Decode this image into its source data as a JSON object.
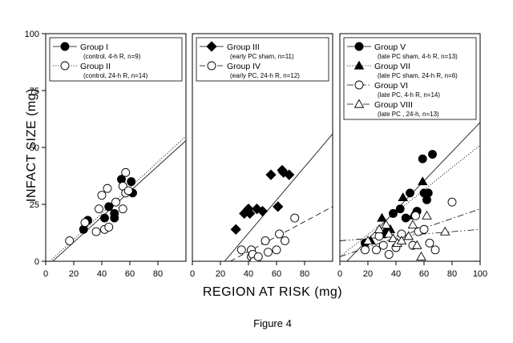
{
  "figure": {
    "caption": "Figure 4",
    "ylabel": "INFACT SIZE (mg)",
    "xlabel": "REGION AT RISK (mg)"
  },
  "chart_data": [
    {
      "type": "scatter",
      "xlim": [
        0,
        100
      ],
      "ylim": [
        0,
        100
      ],
      "yticks": [
        "0",
        "25",
        "50",
        "75",
        "100"
      ],
      "xticks": [
        "0",
        "20",
        "40",
        "60",
        "80"
      ],
      "grid": false,
      "legend_position": "top",
      "series": [
        {
          "name": "Group I",
          "desc": "(control, 4-h R, n=9)",
          "marker": "circle-filled",
          "line": "solid",
          "fit": [
            [
              5,
              0
            ],
            [
              100,
              53
            ]
          ],
          "points": [
            [
              27,
              14
            ],
            [
              30,
              18
            ],
            [
              42,
              19
            ],
            [
              45,
              24
            ],
            [
              49,
              19
            ],
            [
              49,
              21
            ],
            [
              54,
              36
            ],
            [
              61,
              35
            ],
            [
              62,
              30
            ]
          ]
        },
        {
          "name": "Group II",
          "desc": "(control, 24-h R, n=14)",
          "marker": "circle-open",
          "line": "dotted",
          "fit": [
            [
              3,
              0
            ],
            [
              100,
              55
            ]
          ],
          "points": [
            [
              17,
              9
            ],
            [
              28,
              17
            ],
            [
              36,
              13
            ],
            [
              38,
              23
            ],
            [
              40,
              29
            ],
            [
              42,
              14
            ],
            [
              45,
              15
            ],
            [
              44,
              32
            ],
            [
              50,
              26
            ],
            [
              55,
              23
            ],
            [
              55,
              33
            ],
            [
              57,
              39
            ],
            [
              57,
              30
            ],
            [
              59,
              31
            ]
          ]
        }
      ]
    },
    {
      "type": "scatter",
      "xlim": [
        0,
        100
      ],
      "ylim": [
        0,
        100
      ],
      "yticks": [],
      "xticks": [
        "0",
        "20",
        "40",
        "60",
        "80"
      ],
      "grid": false,
      "legend_position": "top",
      "series": [
        {
          "name": "Group III",
          "desc": "(early PC sham, n=11)",
          "marker": "diamond-filled",
          "line": "solid",
          "fit": [
            [
              23,
              0
            ],
            [
              100,
              56
            ]
          ],
          "points": [
            [
              31,
              14
            ],
            [
              37,
              21
            ],
            [
              40,
              23
            ],
            [
              41,
              21
            ],
            [
              46,
              23
            ],
            [
              50,
              22
            ],
            [
              56,
              38
            ],
            [
              61,
              24
            ],
            [
              64,
              40
            ],
            [
              65,
              39
            ],
            [
              69,
              38
            ]
          ]
        },
        {
          "name": "Group IV",
          "desc": "(early PC, 24-h R, n=12)",
          "marker": "circle-open",
          "line": "dashed",
          "fit": [
            [
              27,
              0
            ],
            [
              100,
              24
            ]
          ],
          "points": [
            [
              35,
              5
            ],
            [
              42,
              5
            ],
            [
              42,
              2
            ],
            [
              43,
              3
            ],
            [
              44,
              0
            ],
            [
              47,
              2
            ],
            [
              52,
              9
            ],
            [
              54,
              4
            ],
            [
              60,
              5
            ],
            [
              62,
              12
            ],
            [
              66,
              9
            ],
            [
              73,
              19
            ]
          ]
        }
      ]
    },
    {
      "type": "scatter",
      "xlim": [
        0,
        100
      ],
      "ylim": [
        0,
        100
      ],
      "yticks": [],
      "xticks": [
        "0",
        "20",
        "40",
        "60",
        "80",
        "100"
      ],
      "grid": false,
      "legend_position": "top",
      "series": [
        {
          "name": "Group V",
          "desc": "(late PC sham, 4-h R, n=13)",
          "marker": "circle-filled",
          "line": "solid",
          "fit": [
            [
              5,
              0
            ],
            [
              100,
              61
            ]
          ],
          "points": [
            [
              18,
              8
            ],
            [
              32,
              12
            ],
            [
              34,
              14
            ],
            [
              38,
              21
            ],
            [
              43,
              23
            ],
            [
              47,
              19
            ],
            [
              50,
              30
            ],
            [
              55,
              22
            ],
            [
              59,
              45
            ],
            [
              60,
              30
            ],
            [
              62,
              27
            ],
            [
              63,
              30
            ],
            [
              66,
              47
            ]
          ]
        },
        {
          "name": "Group VII",
          "desc": "(late PC sham, 24-h R, n=6)",
          "marker": "triangle-filled",
          "line": "dotted",
          "fit": [
            [
              0,
              2
            ],
            [
              100,
              51
            ]
          ],
          "points": [
            [
              22,
              9
            ],
            [
              30,
              19
            ],
            [
              36,
              14
            ],
            [
              45,
              28
            ],
            [
              52,
              20
            ],
            [
              59,
              35
            ]
          ]
        },
        {
          "name": "Group VI",
          "desc": "(late PC, 4-h R, n=14)",
          "marker": "circle-open",
          "line": "dashdot",
          "fit": [
            [
              0,
              2
            ],
            [
              100,
              23
            ]
          ],
          "points": [
            [
              18,
              5
            ],
            [
              26,
              5
            ],
            [
              28,
              11
            ],
            [
              31,
              7
            ],
            [
              35,
              3
            ],
            [
              40,
              6
            ],
            [
              44,
              12
            ],
            [
              52,
              7
            ],
            [
              54,
              20
            ],
            [
              56,
              13
            ],
            [
              60,
              14
            ],
            [
              64,
              8
            ],
            [
              68,
              5
            ],
            [
              80,
              26
            ]
          ]
        },
        {
          "name": "Group VIII",
          "desc": "(late PC , 24-h, n=13)",
          "marker": "triangle-open",
          "line": "dashdotdot",
          "fit": [
            [
              0,
              9
            ],
            [
              100,
              14
            ]
          ],
          "points": [
            [
              20,
              9
            ],
            [
              28,
              14
            ],
            [
              33,
              16
            ],
            [
              35,
              12
            ],
            [
              38,
              10
            ],
            [
              41,
              8
            ],
            [
              44,
              9
            ],
            [
              49,
              11
            ],
            [
              52,
              16
            ],
            [
              55,
              7
            ],
            [
              58,
              2
            ],
            [
              62,
              20
            ],
            [
              75,
              13
            ]
          ]
        }
      ]
    }
  ]
}
